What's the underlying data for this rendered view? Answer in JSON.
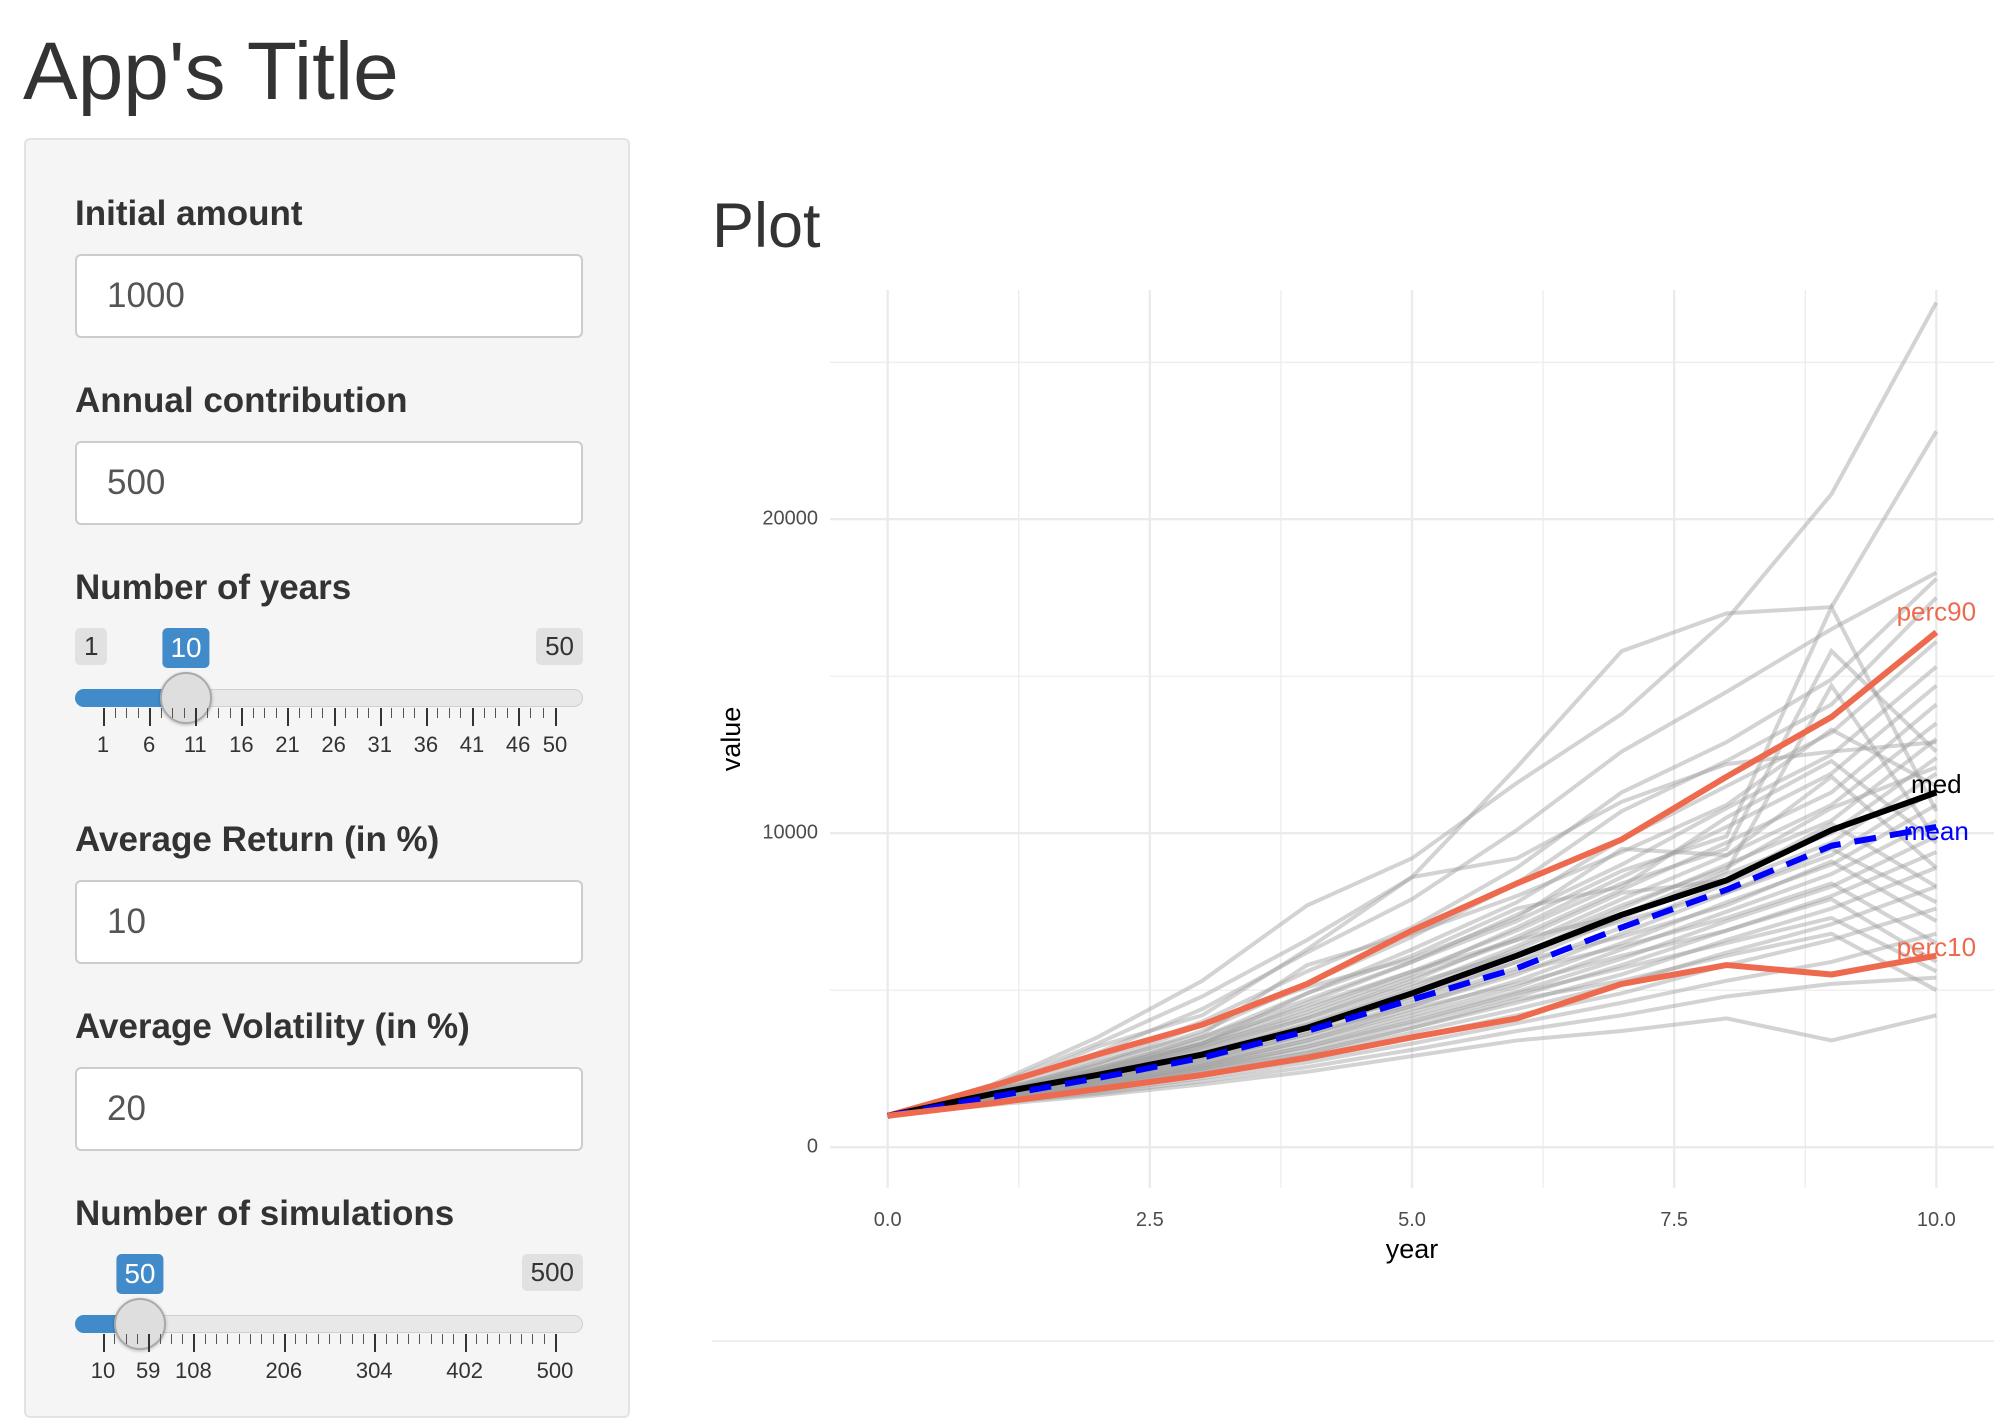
{
  "app": {
    "title": "App's Title"
  },
  "sidebar": {
    "initial_amount": {
      "label": "Initial amount",
      "value": "1000"
    },
    "annual_contribution": {
      "label": "Annual contribution",
      "value": "500"
    },
    "years": {
      "label": "Number of years",
      "min": 1,
      "max": 50,
      "value": 10,
      "min_label": "1",
      "max_label": "50",
      "value_label": "10",
      "tick_labels": [
        "1",
        "6",
        "11",
        "16",
        "21",
        "26",
        "31",
        "36",
        "41",
        "46",
        "50"
      ],
      "tick_values": [
        1,
        6,
        11,
        16,
        21,
        26,
        31,
        36,
        41,
        46,
        50
      ]
    },
    "average_return": {
      "label": "Average Return (in %)",
      "value": "10"
    },
    "average_volatility": {
      "label": "Average Volatility (in %)",
      "value": "20"
    },
    "simulations": {
      "label": "Number of simulations",
      "min": 10,
      "max": 500,
      "value": 50,
      "min_label": "10",
      "max_label": "500",
      "value_label": "50",
      "tick_labels": [
        "10",
        "59",
        "108",
        "206",
        "304",
        "402",
        "500"
      ],
      "tick_values": [
        10,
        59,
        108,
        206,
        304,
        402,
        500
      ]
    }
  },
  "main": {
    "plot_heading": "Plot"
  },
  "colors": {
    "accent": "#428bca",
    "simulation_lines": "#9e9e9e",
    "percentile_lines": "#ee6a4e",
    "median_line": "#000000",
    "mean_line": "#0000ff",
    "grid": "#ebebeb"
  },
  "chart_data": {
    "type": "line",
    "title": "",
    "xlabel": "year",
    "ylabel": "value",
    "xlim": [
      0,
      10
    ],
    "ylim": [
      0,
      26000
    ],
    "x_ticks": [
      "0.0",
      "2.5",
      "5.0",
      "7.5",
      "10.0"
    ],
    "y_ticks": [
      "0",
      "10000",
      "20000"
    ],
    "grid": true,
    "x": [
      0,
      1,
      2,
      3,
      4,
      5,
      6,
      7,
      8,
      9,
      10
    ],
    "series": [
      {
        "name": "perc90",
        "values": [
          1000,
          1950,
          2950,
          3900,
          5200,
          6900,
          8400,
          9800,
          11800,
          13700,
          16400
        ]
      },
      {
        "name": "med",
        "values": [
          1000,
          1700,
          2300,
          2950,
          3800,
          4900,
          6100,
          7400,
          8500,
          10100,
          11300
        ]
      },
      {
        "name": "mean",
        "values": [
          1000,
          1600,
          2200,
          2850,
          3700,
          4700,
          5700,
          7000,
          8200,
          9600,
          10200
        ]
      },
      {
        "name": "perc10",
        "values": [
          1000,
          1400,
          1850,
          2300,
          2850,
          3500,
          4100,
          5200,
          5800,
          5500,
          6100
        ]
      }
    ],
    "simulations": [
      [
        1000,
        2000,
        3500,
        5300,
        7700,
        9200,
        11600,
        13800,
        16800,
        20800,
        26900
      ],
      [
        1000,
        1950,
        3300,
        4800,
        6600,
        8600,
        12100,
        15800,
        17000,
        17200,
        22800
      ],
      [
        1000,
        1900,
        3000,
        4400,
        6200,
        7900,
        10100,
        12600,
        14500,
        16500,
        18300
      ],
      [
        1000,
        1850,
        2800,
        4000,
        5600,
        7000,
        8900,
        11300,
        12900,
        14900,
        18100
      ],
      [
        1000,
        1800,
        2600,
        3700,
        5200,
        6700,
        8400,
        10700,
        12300,
        14100,
        17500
      ],
      [
        1000,
        1750,
        2500,
        3500,
        4900,
        6300,
        7800,
        9800,
        11500,
        13200,
        16100
      ],
      [
        1000,
        1700,
        2400,
        3300,
        4600,
        5900,
        7400,
        9000,
        10800,
        12500,
        15300
      ],
      [
        1000,
        1700,
        2350,
        3200,
        4300,
        5500,
        7000,
        8600,
        10200,
        11900,
        14700
      ],
      [
        1000,
        1650,
        2300,
        3100,
        4100,
        5300,
        6700,
        8200,
        9700,
        11300,
        14100
      ],
      [
        1000,
        1650,
        2250,
        3000,
        3950,
        5100,
        6400,
        7900,
        9300,
        10900,
        13500
      ],
      [
        1000,
        1600,
        2200,
        2900,
        3800,
        4900,
        6100,
        7600,
        9000,
        10400,
        13000
      ],
      [
        1000,
        1600,
        2150,
        2850,
        3700,
        4800,
        5900,
        7300,
        8700,
        10000,
        12400
      ],
      [
        1000,
        1600,
        2100,
        2800,
        3600,
        4600,
        5700,
        7000,
        8400,
        9700,
        11900
      ],
      [
        1000,
        1550,
        2100,
        2700,
        3500,
        4500,
        5500,
        6800,
        8100,
        9300,
        11400
      ],
      [
        1000,
        1550,
        2050,
        2650,
        3400,
        4300,
        5300,
        6500,
        7800,
        9000,
        10900
      ],
      [
        1000,
        1550,
        2000,
        2600,
        3300,
        4200,
        5100,
        6300,
        7500,
        8700,
        10400
      ],
      [
        1000,
        1500,
        2000,
        2550,
        3200,
        4100,
        4950,
        6000,
        7200,
        8300,
        9900
      ],
      [
        1000,
        1500,
        1950,
        2500,
        3100,
        3950,
        4800,
        5800,
        6900,
        8000,
        9400
      ],
      [
        1000,
        1500,
        1900,
        2450,
        3000,
        3800,
        4600,
        5500,
        6600,
        7600,
        8900
      ],
      [
        1000,
        1450,
        1850,
        2350,
        2900,
        3650,
        4400,
        5200,
        6200,
        7100,
        8300
      ],
      [
        1000,
        1450,
        1800,
        2300,
        2800,
        3500,
        4200,
        4900,
        5800,
        6600,
        7600
      ],
      [
        1000,
        1400,
        1750,
        2200,
        2700,
        3300,
        3950,
        4600,
        5300,
        5900,
        6800
      ],
      [
        1000,
        1400,
        1700,
        2100,
        2550,
        3100,
        3700,
        4200,
        4800,
        5200,
        5400
      ],
      [
        1000,
        1350,
        1650,
        2000,
        2400,
        2900,
        3400,
        3700,
        4100,
        3400,
        4200
      ],
      [
        1000,
        1800,
        3200,
        4200,
        6300,
        8600,
        9200,
        11000,
        12200,
        12600,
        12900
      ],
      [
        1000,
        1700,
        2700,
        3600,
        5800,
        6800,
        8000,
        9400,
        10900,
        13300,
        11500
      ],
      [
        1000,
        1600,
        2500,
        3300,
        4900,
        6100,
        7600,
        8300,
        10500,
        12300,
        9700
      ],
      [
        1000,
        1750,
        2650,
        3900,
        5100,
        6000,
        7300,
        9500,
        9300,
        11800,
        8900
      ],
      [
        1000,
        1650,
        2450,
        3400,
        4500,
        5600,
        6600,
        8100,
        8500,
        10300,
        8300
      ],
      [
        1000,
        1550,
        2300,
        3150,
        4100,
        5200,
        6200,
        7200,
        8100,
        9500,
        7800
      ],
      [
        1000,
        1500,
        2150,
        2900,
        3850,
        4700,
        5900,
        6700,
        7700,
        9100,
        7200
      ],
      [
        1000,
        1450,
        2050,
        2750,
        3600,
        4500,
        5600,
        6400,
        7300,
        8400,
        6500
      ],
      [
        1000,
        1450,
        1950,
        2600,
        3400,
        4400,
        5200,
        6100,
        6900,
        7900,
        5900
      ],
      [
        1000,
        1400,
        1900,
        2500,
        3200,
        4000,
        4900,
        5700,
        6500,
        7300,
        5600
      ],
      [
        1000,
        1400,
        1850,
        2400,
        3000,
        3800,
        4700,
        5300,
        6100,
        6800,
        5000
      ],
      [
        1000,
        1600,
        2350,
        3250,
        4200,
        5400,
        6600,
        7400,
        8800,
        14700,
        9800
      ],
      [
        1000,
        1700,
        2500,
        3500,
        4700,
        5900,
        7200,
        8800,
        9900,
        17200,
        10700
      ],
      [
        1000,
        1650,
        2400,
        3300,
        4400,
        5600,
        6900,
        8400,
        9500,
        15800,
        12600
      ],
      [
        1000,
        1550,
        2200,
        3000,
        3900,
        5000,
        6300,
        7700,
        8900,
        10800,
        12100
      ]
    ],
    "annotations": [
      {
        "label": "perc90",
        "color": "#ee6a4e"
      },
      {
        "label": "med",
        "color": "#000000"
      },
      {
        "label": "mean",
        "color": "#0000ff"
      },
      {
        "label": "perc10",
        "color": "#ee6a4e"
      }
    ]
  }
}
